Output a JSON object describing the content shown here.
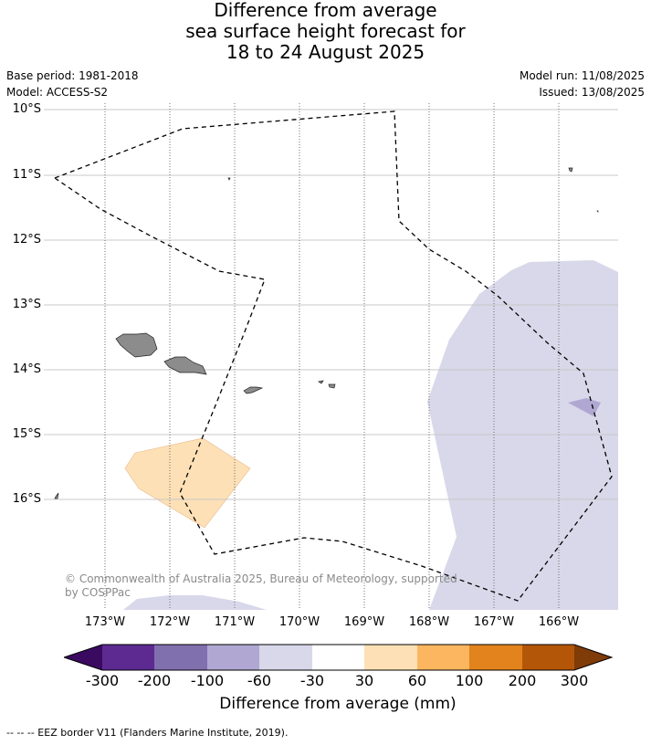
{
  "title": {
    "line1": "Difference from average",
    "line2": "sea surface height forecast for",
    "line3": "18 to 24 August 2025"
  },
  "meta": {
    "base_period": "Base period: 1981-2018",
    "model": "Model: ACCESS-S2",
    "model_run": "Model run: 11/08/2025",
    "issued": "Issued: 13/08/2025"
  },
  "map": {
    "lat_labels": [
      "10°S",
      "11°S",
      "12°S",
      "13°S",
      "14°S",
      "15°S",
      "16°S"
    ],
    "lon_labels": [
      "173°W",
      "172°W",
      "171°W",
      "170°W",
      "169°W",
      "168°W",
      "167°W",
      "166°W"
    ],
    "land_color": "#8c8c8c",
    "copyright": "© Commonwealth of Australia 2025, Bureau of Meteorology, supported",
    "copyright_line2": "by COSPPac"
  },
  "colorbar": {
    "colors": [
      "#3a0a60",
      "#5d2a91",
      "#8070ae",
      "#b0a8d2",
      "#d8d8ea",
      "#ffffff",
      "#fde0b6",
      "#fbb65f",
      "#e2831d",
      "#b45607",
      "#7f3b08"
    ],
    "ticks": [
      "-300",
      "-200",
      "-100",
      "-60",
      "-30",
      "30",
      "60",
      "100",
      "200",
      "300"
    ],
    "label": "Difference from average (mm)"
  },
  "footer": "-- -- -- EEZ border V11 (Flanders Marine Institute, 2019)."
}
